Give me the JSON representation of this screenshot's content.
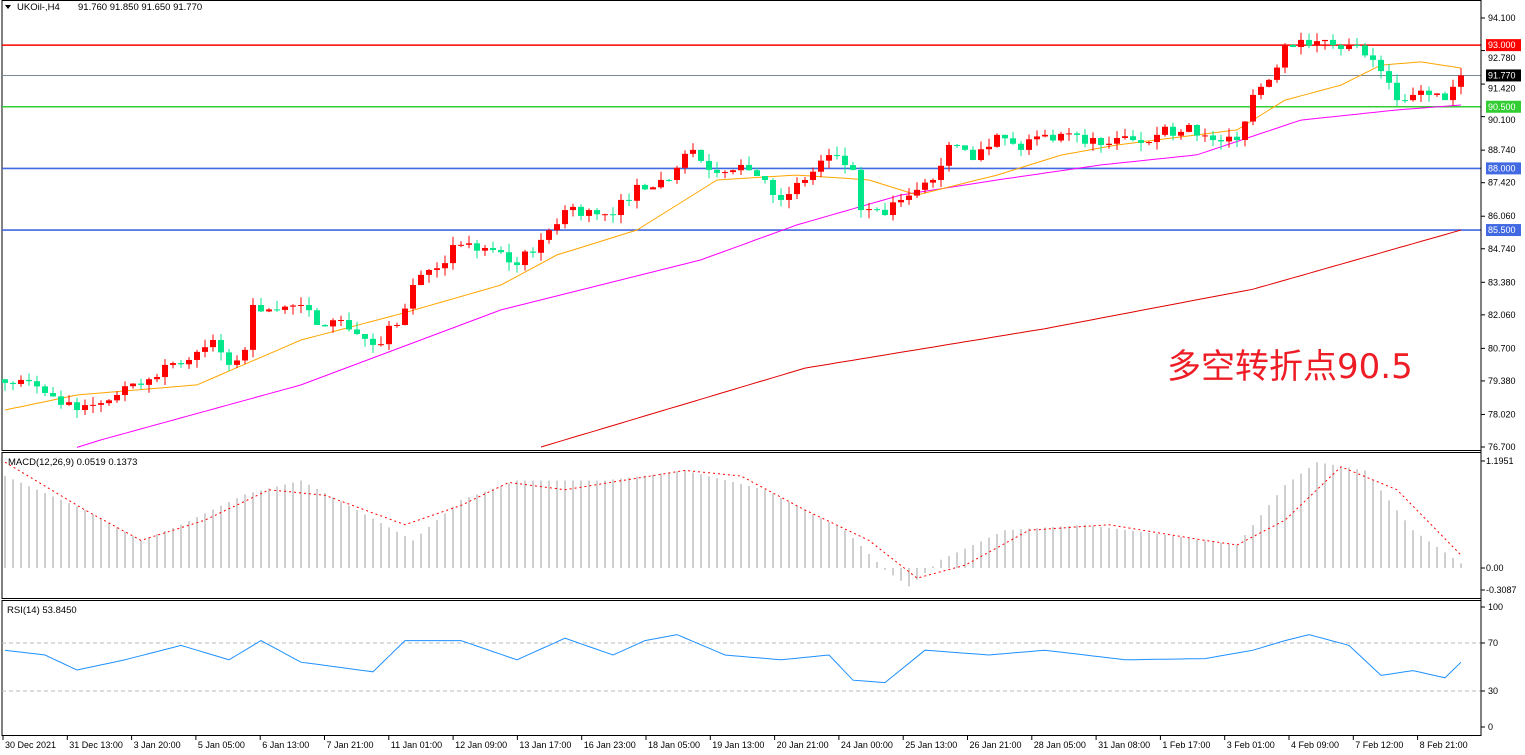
{
  "header": {
    "symbol": "UKOil-,H4",
    "ohlc": "91.760 91.850 91.650 91.770"
  },
  "annotation": "多空转折点90.5",
  "colors": {
    "up_candle": "#ff0000",
    "down_candle": "#00e68a",
    "ma_fast": "#ffa500",
    "ma_mid": "#ff00ff",
    "ma_slow": "#e00000",
    "macd_hist": "#c0c0c0",
    "macd_signal": "#ff0000",
    "rsi": "#1e90ff"
  },
  "chart_data": [
    {
      "type": "candlestick",
      "title": "UKOil-,H4",
      "ylim": [
        76.7,
        94.1
      ],
      "y_ticks": [
        "94.100",
        "92.780",
        "91.420",
        "90.100",
        "88.740",
        "87.420",
        "86.060",
        "84.740",
        "83.380",
        "82.060",
        "80.700",
        "79.380",
        "78.020",
        "76.700"
      ],
      "x_ticks": [
        "30 Dec 2021",
        "31 Dec 13:00",
        "3 Jan 20:00",
        "5 Jan 05:00",
        "6 Jan 13:00",
        "7 Jan 21:00",
        "11 Jan 01:00",
        "12 Jan 09:00",
        "13 Jan 17:00",
        "16 Jan 23:00",
        "18 Jan 05:00",
        "19 Jan 13:00",
        "20 Jan 21:00",
        "24 Jan 00:00",
        "25 Jan 13:00",
        "26 Jan 21:00",
        "28 Jan 05:00",
        "31 Jan 08:00",
        "1 Feb 17:00",
        "3 Feb 01:00",
        "4 Feb 09:00",
        "7 Feb 12:00",
        "8 Feb 21:00"
      ],
      "candle_count": 183,
      "close_path": [
        [
          0,
          79.3
        ],
        [
          2,
          79.42
        ],
        [
          5,
          78.89
        ],
        [
          7,
          78.41
        ],
        [
          9,
          78.2
        ],
        [
          11,
          78.41
        ],
        [
          14,
          78.81
        ],
        [
          17,
          79.22
        ],
        [
          20,
          80.03
        ],
        [
          23,
          80.23
        ],
        [
          26,
          81.04
        ],
        [
          28,
          80.03
        ],
        [
          30,
          80.64
        ],
        [
          31,
          82.46
        ],
        [
          34,
          82.26
        ],
        [
          37,
          82.46
        ],
        [
          39,
          81.65
        ],
        [
          42,
          81.85
        ],
        [
          46,
          80.84
        ],
        [
          49,
          81.65
        ],
        [
          51,
          83.27
        ],
        [
          53,
          83.88
        ],
        [
          57,
          84.9
        ],
        [
          61,
          84.69
        ],
        [
          64,
          84.08
        ],
        [
          67,
          85.1
        ],
        [
          70,
          86.31
        ],
        [
          73,
          86.31
        ],
        [
          76,
          86.11
        ],
        [
          79,
          87.33
        ],
        [
          83,
          87.53
        ],
        [
          86,
          88.75
        ],
        [
          88,
          87.94
        ],
        [
          92,
          88.14
        ],
        [
          95,
          87.53
        ],
        [
          97,
          86.72
        ],
        [
          100,
          87.53
        ],
        [
          103,
          88.54
        ],
        [
          106,
          87.94
        ],
        [
          107,
          86.31
        ],
        [
          110,
          86.11
        ],
        [
          112,
          86.72
        ],
        [
          114,
          87.13
        ],
        [
          116,
          87.53
        ],
        [
          118,
          88.95
        ],
        [
          121,
          88.34
        ],
        [
          124,
          89.36
        ],
        [
          127,
          88.75
        ],
        [
          130,
          89.36
        ],
        [
          134,
          89.36
        ],
        [
          137,
          88.95
        ],
        [
          141,
          89.15
        ],
        [
          144,
          89.36
        ],
        [
          148,
          89.76
        ],
        [
          151,
          89.15
        ],
        [
          154,
          89.15
        ],
        [
          156,
          90.98
        ],
        [
          158,
          91.59
        ],
        [
          160,
          93.01
        ],
        [
          162,
          93.21
        ],
        [
          165,
          93.21
        ],
        [
          168,
          93.01
        ],
        [
          171,
          92.4
        ],
        [
          174,
          90.77
        ],
        [
          176,
          90.98
        ],
        [
          178,
          90.98
        ],
        [
          180,
          90.77
        ],
        [
          182,
          91.77
        ]
      ],
      "ma_fast": [
        [
          0,
          78.2
        ],
        [
          9,
          78.81
        ],
        [
          24,
          79.22
        ],
        [
          37,
          81.04
        ],
        [
          49,
          82.06
        ],
        [
          62,
          83.27
        ],
        [
          69,
          84.49
        ],
        [
          79,
          85.5
        ],
        [
          89,
          87.53
        ],
        [
          99,
          87.73
        ],
        [
          108,
          87.53
        ],
        [
          114,
          86.92
        ],
        [
          124,
          87.73
        ],
        [
          132,
          88.54
        ],
        [
          139,
          88.95
        ],
        [
          149,
          89.36
        ],
        [
          154,
          89.56
        ],
        [
          160,
          90.77
        ],
        [
          167,
          91.38
        ],
        [
          172,
          92.19
        ],
        [
          177,
          92.32
        ],
        [
          182,
          92.07
        ]
      ],
      "ma_mid": [
        [
          0,
          75.77
        ],
        [
          12,
          76.99
        ],
        [
          37,
          79.22
        ],
        [
          62,
          82.26
        ],
        [
          87,
          84.29
        ],
        [
          99,
          85.71
        ],
        [
          112,
          86.92
        ],
        [
          124,
          87.53
        ],
        [
          137,
          88.14
        ],
        [
          149,
          88.55
        ],
        [
          162,
          89.96
        ],
        [
          174,
          90.37
        ],
        [
          182,
          90.57
        ]
      ],
      "ma_slow": [
        [
          67,
          76.7
        ],
        [
          100,
          79.9
        ],
        [
          130,
          81.5
        ],
        [
          156,
          83.1
        ],
        [
          182,
          85.5
        ]
      ],
      "levels": [
        {
          "value": "93.000",
          "color": "#ff0000"
        },
        {
          "value": "91.770",
          "color": "#778899",
          "label_bg": "#000000"
        },
        {
          "value": "90.500",
          "color": "#32cd32"
        },
        {
          "value": "88.000",
          "color": "#4169e1"
        },
        {
          "value": "85.500",
          "color": "#4169e1"
        }
      ]
    },
    {
      "type": "bar+line",
      "title": "MACD(12,26,9) 0.0519 0.1373",
      "ylim": [
        -0.3087,
        1.1951
      ],
      "y_ticks": [
        "1.1951",
        "0.00",
        "-0.3087"
      ],
      "histogram": [
        [
          0,
          1.0
        ],
        [
          10,
          0.63
        ],
        [
          17,
          0.3
        ],
        [
          22,
          0.47
        ],
        [
          30,
          0.8
        ],
        [
          37,
          0.95
        ],
        [
          44,
          0.63
        ],
        [
          51,
          0.3
        ],
        [
          57,
          0.74
        ],
        [
          64,
          0.95
        ],
        [
          75,
          0.95
        ],
        [
          85,
          1.06
        ],
        [
          95,
          0.85
        ],
        [
          105,
          0.41
        ],
        [
          110,
          -0.02
        ],
        [
          113,
          -0.2
        ],
        [
          117,
          0.09
        ],
        [
          125,
          0.41
        ],
        [
          135,
          0.47
        ],
        [
          145,
          0.36
        ],
        [
          154,
          0.25
        ],
        [
          160,
          0.9
        ],
        [
          164,
          1.15
        ],
        [
          170,
          1.06
        ],
        [
          176,
          0.41
        ],
        [
          182,
          0.05
        ]
      ],
      "signal": [
        [
          0,
          1.15
        ],
        [
          10,
          0.63
        ],
        [
          17,
          0.3
        ],
        [
          25,
          0.52
        ],
        [
          33,
          0.85
        ],
        [
          40,
          0.79
        ],
        [
          50,
          0.47
        ],
        [
          57,
          0.68
        ],
        [
          63,
          0.93
        ],
        [
          70,
          0.85
        ],
        [
          85,
          1.06
        ],
        [
          92,
          1.0
        ],
        [
          100,
          0.63
        ],
        [
          108,
          0.3
        ],
        [
          114,
          -0.11
        ],
        [
          120,
          0.03
        ],
        [
          128,
          0.41
        ],
        [
          138,
          0.47
        ],
        [
          150,
          0.3
        ],
        [
          154,
          0.25
        ],
        [
          160,
          0.52
        ],
        [
          167,
          1.1
        ],
        [
          174,
          0.85
        ],
        [
          182,
          0.14
        ]
      ]
    },
    {
      "type": "line",
      "title": "RSI(14) 53.8450",
      "ylim": [
        0,
        100
      ],
      "y_ticks": [
        "100",
        "70",
        "30",
        "0"
      ],
      "levels": [
        70,
        30
      ],
      "values": [
        [
          0,
          64
        ],
        [
          5,
          60
        ],
        [
          9,
          47.5
        ],
        [
          15,
          56
        ],
        [
          22,
          68
        ],
        [
          28,
          56
        ],
        [
          32,
          72
        ],
        [
          37,
          54
        ],
        [
          46,
          46
        ],
        [
          50,
          72
        ],
        [
          57,
          72
        ],
        [
          64,
          56
        ],
        [
          70,
          74
        ],
        [
          76,
          60
        ],
        [
          80,
          72
        ],
        [
          84,
          77
        ],
        [
          90,
          60
        ],
        [
          97,
          56
        ],
        [
          103,
          60
        ],
        [
          106,
          39
        ],
        [
          110,
          37
        ],
        [
          115,
          64
        ],
        [
          123,
          60
        ],
        [
          130,
          64
        ],
        [
          140,
          56
        ],
        [
          150,
          57
        ],
        [
          156,
          64
        ],
        [
          160,
          72
        ],
        [
          163,
          77
        ],
        [
          168,
          68
        ],
        [
          172,
          43
        ],
        [
          176,
          47
        ],
        [
          180,
          41
        ],
        [
          182,
          54
        ]
      ]
    }
  ]
}
